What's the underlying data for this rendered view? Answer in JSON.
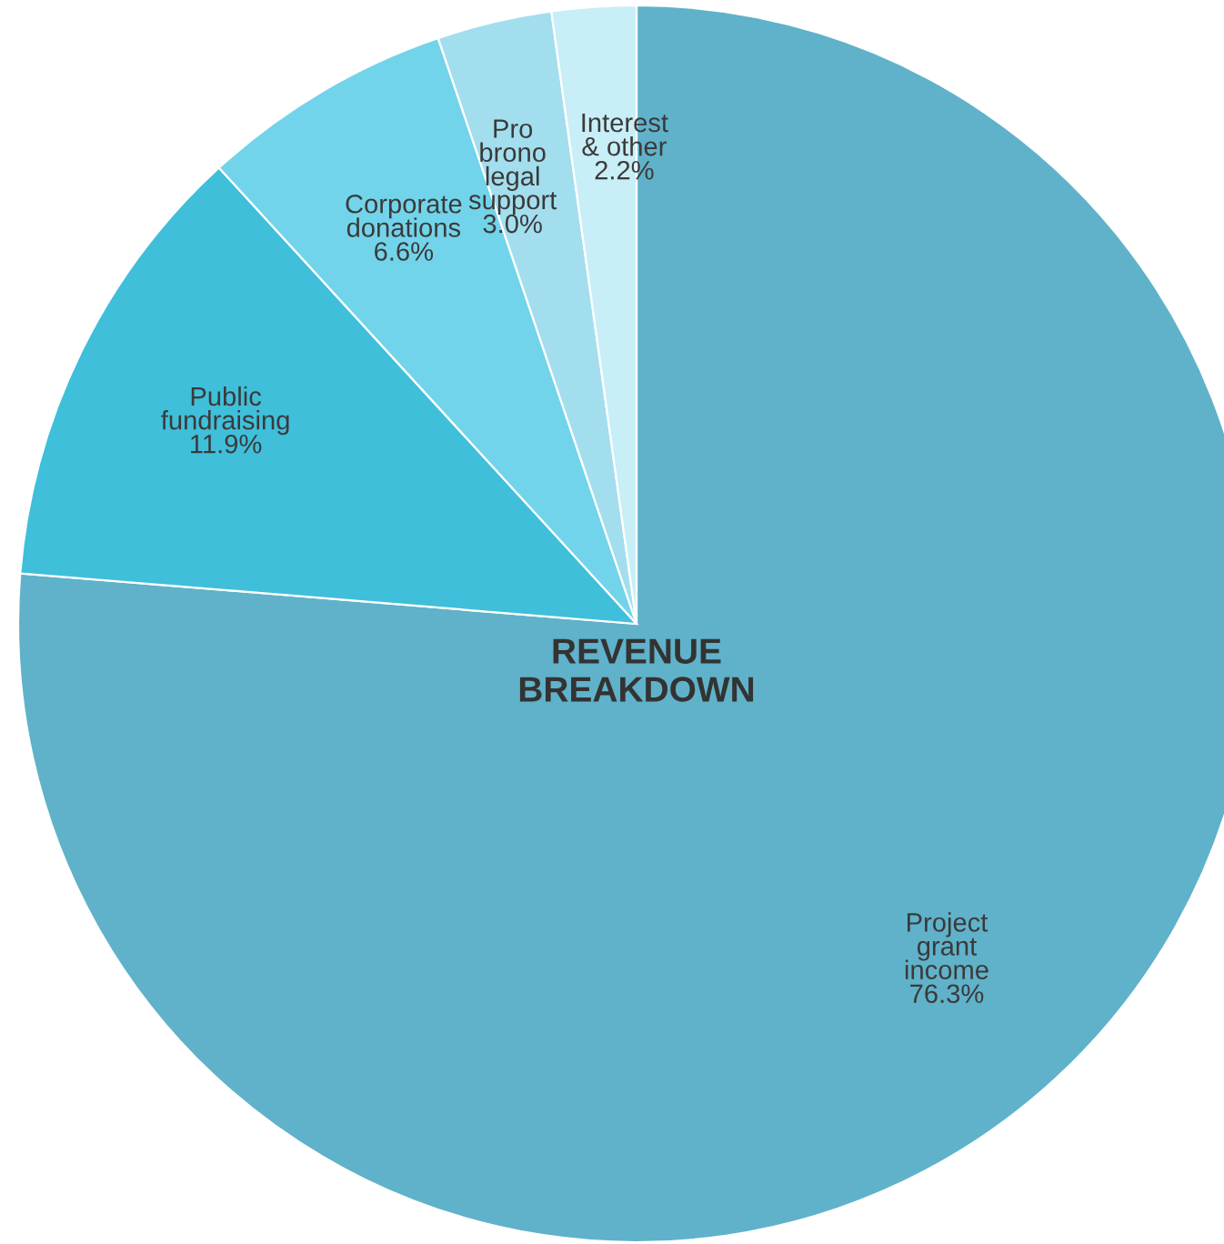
{
  "chart_data": {
    "type": "pie",
    "title": "REVENUE\nBREAKDOWN",
    "categories": [
      "Project\ngrant\nincome",
      "Public\nfundraising",
      "Corporate\ndonations",
      "Pro\nbrono\nlegal\nsupport",
      "Interest\n& other"
    ],
    "values": [
      76.3,
      11.9,
      6.6,
      3.0,
      2.2
    ],
    "value_labels": [
      "76.3%",
      "11.9%",
      "6.6%",
      "3.0%",
      "2.2%"
    ],
    "colors": [
      "#5fb2c9",
      "#3fbfda",
      "#72d4ea",
      "#a3deee",
      "#c8eef7"
    ],
    "legend": false
  }
}
